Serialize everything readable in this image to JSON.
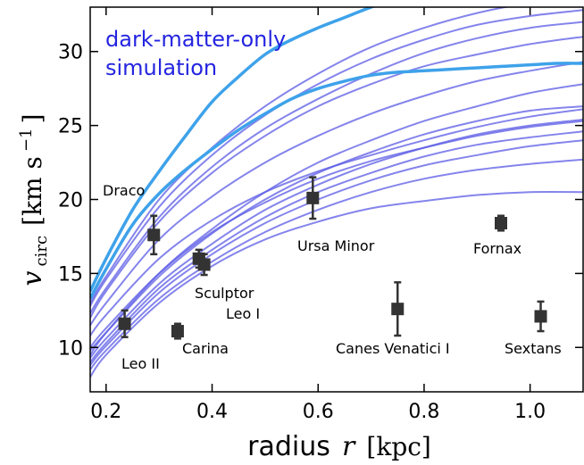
{
  "chart_data": {
    "type": "line",
    "xlabel_text": "radius",
    "xlabel_var": "r",
    "xlabel_unit": "[kpc]",
    "ylabel_var": "v",
    "ylabel_sub": "circ",
    "ylabel_unit": "[km s",
    "ylabel_exp": "−1",
    "ylabel_close": "]",
    "annotation": "dark-matter-only\nsimulation",
    "xlim": [
      0.17,
      1.1
    ],
    "ylim": [
      7.0,
      33.0
    ],
    "xticks": [
      0.2,
      0.4,
      0.6,
      0.8,
      1.0
    ],
    "xtick_labels": [
      "0.2",
      "0.4",
      "0.6",
      "0.8",
      "1.0"
    ],
    "yticks": [
      10,
      15,
      20,
      25,
      30
    ],
    "ytick_labels": [
      "10",
      "15",
      "20",
      "25",
      "30"
    ],
    "colors": {
      "simulation": "#5b5be6",
      "highlight": "#3ea2ea",
      "annotation": "#2424e0",
      "points": "#333333"
    },
    "simulation_curves": [
      {
        "x": [
          0.17,
          0.2,
          0.3,
          0.4,
          0.5,
          0.6,
          0.7,
          0.8,
          0.9,
          1.0,
          1.1
        ],
        "y": [
          8.0,
          9.5,
          13.0,
          15.5,
          17.3,
          18.5,
          19.4,
          19.9,
          20.3,
          20.5,
          20.5
        ]
      },
      {
        "x": [
          0.17,
          0.2,
          0.3,
          0.4,
          0.5,
          0.6,
          0.7,
          0.8,
          0.9,
          1.0,
          1.1
        ],
        "y": [
          8.5,
          9.8,
          13.3,
          15.8,
          17.8,
          19.3,
          20.5,
          21.4,
          22.0,
          22.4,
          22.7
        ]
      },
      {
        "x": [
          0.17,
          0.2,
          0.3,
          0.4,
          0.5,
          0.6,
          0.7,
          0.8,
          0.9,
          1.0,
          1.1
        ],
        "y": [
          8.8,
          10.1,
          13.7,
          16.3,
          18.4,
          20.0,
          21.3,
          22.3,
          23.0,
          23.6,
          24.0
        ]
      },
      {
        "x": [
          0.17,
          0.2,
          0.3,
          0.4,
          0.5,
          0.6,
          0.7,
          0.8,
          0.9,
          1.0,
          1.1
        ],
        "y": [
          9.0,
          10.3,
          14.0,
          16.6,
          18.8,
          20.5,
          21.8,
          22.9,
          23.7,
          24.2,
          24.6
        ]
      },
      {
        "x": [
          0.17,
          0.2,
          0.3,
          0.4,
          0.5,
          0.6,
          0.7,
          0.8,
          0.9,
          1.0,
          1.1
        ],
        "y": [
          9.3,
          10.6,
          14.3,
          17.0,
          19.3,
          21.0,
          22.4,
          23.5,
          24.4,
          25.0,
          25.4
        ]
      },
      {
        "x": [
          0.17,
          0.2,
          0.3,
          0.4,
          0.5,
          0.6,
          0.7,
          0.8,
          0.9,
          1.0,
          1.1
        ],
        "y": [
          10.0,
          11.3,
          15.0,
          17.8,
          19.8,
          21.4,
          22.6,
          23.5,
          24.3,
          24.9,
          25.3
        ]
      },
      {
        "x": [
          0.17,
          0.2,
          0.3,
          0.4,
          0.5,
          0.6,
          0.7,
          0.8,
          0.9,
          1.0,
          1.1
        ],
        "y": [
          9.8,
          11.0,
          14.8,
          17.7,
          20.0,
          21.8,
          23.2,
          24.4,
          25.3,
          26.0,
          26.3
        ]
      },
      {
        "x": [
          0.17,
          0.2,
          0.3,
          0.4,
          0.5,
          0.6,
          0.7,
          0.8,
          0.9,
          1.0,
          1.1
        ],
        "y": [
          10.8,
          12.2,
          16.0,
          18.6,
          20.5,
          21.9,
          23.0,
          24.0,
          24.9,
          25.6,
          26.1
        ]
      },
      {
        "x": [
          0.17,
          0.2,
          0.3,
          0.4,
          0.5,
          0.6,
          0.7,
          0.8,
          0.9,
          1.0,
          1.1
        ],
        "y": [
          9.5,
          11.0,
          15.0,
          18.0,
          20.5,
          22.5,
          24.0,
          25.3,
          26.3,
          27.2,
          27.8
        ]
      },
      {
        "x": [
          0.17,
          0.2,
          0.3,
          0.4,
          0.5,
          0.6,
          0.7,
          0.8,
          0.9,
          1.0,
          1.1
        ],
        "y": [
          11.5,
          13.0,
          17.3,
          20.2,
          22.5,
          24.3,
          25.8,
          27.0,
          28.0,
          28.7,
          29.3
        ]
      },
      {
        "x": [
          0.17,
          0.2,
          0.3,
          0.4,
          0.5,
          0.6,
          0.7,
          0.8,
          0.9,
          1.0,
          1.1
        ],
        "y": [
          12.0,
          13.8,
          18.5,
          21.8,
          24.3,
          26.3,
          27.8,
          29.0,
          29.8,
          30.5,
          31.0
        ]
      },
      {
        "x": [
          0.17,
          0.2,
          0.3,
          0.4,
          0.5,
          0.6,
          0.7,
          0.8,
          0.9,
          1.0,
          1.1
        ],
        "y": [
          12.3,
          14.0,
          18.8,
          22.2,
          24.8,
          26.8,
          28.5,
          29.9,
          30.9,
          31.6,
          32.0
        ]
      },
      {
        "x": [
          0.17,
          0.2,
          0.3,
          0.4,
          0.5,
          0.6,
          0.7,
          0.8,
          0.9,
          1.0,
          1.1
        ],
        "y": [
          12.8,
          14.6,
          19.5,
          23.0,
          25.7,
          27.8,
          29.5,
          30.8,
          31.8,
          32.4,
          32.8
        ]
      },
      {
        "x": [
          0.17,
          0.2,
          0.3,
          0.4,
          0.5,
          0.6,
          0.7,
          0.8,
          0.9,
          1.0,
          1.1
        ],
        "y": [
          13.0,
          14.8,
          20.0,
          23.5,
          26.3,
          28.5,
          30.3,
          31.6,
          32.6,
          33.3,
          33.8
        ]
      }
    ],
    "highlight_curves": [
      {
        "x": [
          0.17,
          0.2,
          0.25,
          0.3,
          0.35,
          0.4,
          0.45,
          0.5,
          0.55,
          0.6,
          0.65,
          0.7,
          0.75,
          0.8,
          0.85,
          0.9,
          0.95,
          1.0,
          1.05,
          1.1
        ],
        "y": [
          13.3,
          15.3,
          18.3,
          20.4,
          22.0,
          23.4,
          24.7,
          25.8,
          26.8,
          27.5,
          28.0,
          28.4,
          28.6,
          28.7,
          28.8,
          28.9,
          29.0,
          29.1,
          29.2,
          29.2
        ]
      },
      {
        "x": [
          0.17,
          0.2,
          0.25,
          0.3,
          0.35,
          0.4,
          0.45,
          0.5,
          0.55,
          0.6,
          0.65,
          0.7,
          0.75
        ],
        "y": [
          13.8,
          16.0,
          19.3,
          21.9,
          24.3,
          26.6,
          28.3,
          29.8,
          30.8,
          31.6,
          32.3,
          33.0,
          33.6
        ]
      }
    ],
    "galaxies": [
      {
        "name": "Draco",
        "x": 0.29,
        "y": 17.6,
        "err": 1.3
      },
      {
        "name": "Leo II",
        "x": 0.235,
        "y": 11.6,
        "err": 0.9
      },
      {
        "name": "Carina",
        "x": 0.335,
        "y": 11.1,
        "err": 0.5
      },
      {
        "name": "Sculptor",
        "x": 0.375,
        "y": 16.0,
        "err": 0.6
      },
      {
        "name": "Leo I",
        "x": 0.385,
        "y": 15.6,
        "err": 0.7
      },
      {
        "name": "Ursa Minor",
        "x": 0.59,
        "y": 20.1,
        "err": 1.4
      },
      {
        "name": "Canes Venatici I",
        "x": 0.75,
        "y": 12.6,
        "err": 1.8
      },
      {
        "name": "Fornax",
        "x": 0.945,
        "y": 18.4,
        "err": 0.5
      },
      {
        "name": "Sextans",
        "x": 1.02,
        "y": 12.1,
        "err": 1.0
      }
    ]
  }
}
